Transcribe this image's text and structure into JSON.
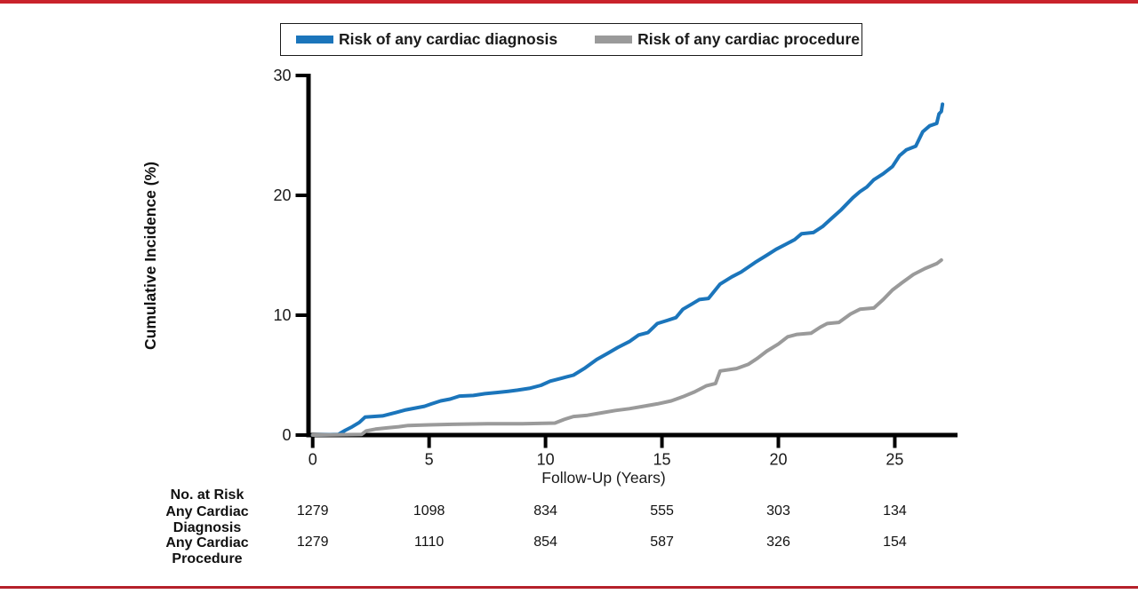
{
  "frame": {
    "top_bar_color": "#c9232b",
    "bottom_bar_color": "#b5202a"
  },
  "legend": {
    "items": [
      {
        "key": "diagnosis",
        "label": "Risk of any cardiac diagnosis",
        "color": "#1b75bb"
      },
      {
        "key": "procedure",
        "label": "Risk of any cardiac procedure",
        "color": "#9a9a9a"
      }
    ]
  },
  "chart_data": {
    "type": "line",
    "title": "",
    "xlabel": "Follow-Up (Years)",
    "ylabel": "Cumulative Incidence (%)",
    "xlim": [
      0,
      27.7
    ],
    "ylim": [
      0,
      30
    ],
    "x_ticks": [
      0,
      5,
      10,
      15,
      20,
      25
    ],
    "y_ticks": [
      0,
      10,
      20,
      30
    ],
    "grid": false,
    "legend_position": "top",
    "axis_color": "#000000",
    "series": [
      {
        "name": "Risk of any cardiac diagnosis",
        "key": "diagnosis",
        "color": "#1b75bb",
        "points": [
          [
            0,
            0
          ],
          [
            1.1,
            0.05
          ],
          [
            1.4,
            0.4
          ],
          [
            1.7,
            0.7
          ],
          [
            2.0,
            1.05
          ],
          [
            2.25,
            1.5
          ],
          [
            3.0,
            1.6
          ],
          [
            3.3,
            1.75
          ],
          [
            3.6,
            1.9
          ],
          [
            4.0,
            2.1
          ],
          [
            4.4,
            2.25
          ],
          [
            4.8,
            2.4
          ],
          [
            5.1,
            2.6
          ],
          [
            5.5,
            2.85
          ],
          [
            5.9,
            3.0
          ],
          [
            6.3,
            3.25
          ],
          [
            6.9,
            3.3
          ],
          [
            7.4,
            3.45
          ],
          [
            7.9,
            3.55
          ],
          [
            8.4,
            3.65
          ],
          [
            8.8,
            3.75
          ],
          [
            9.3,
            3.9
          ],
          [
            9.8,
            4.15
          ],
          [
            10.2,
            4.5
          ],
          [
            10.7,
            4.75
          ],
          [
            11.2,
            5.0
          ],
          [
            11.7,
            5.6
          ],
          [
            12.2,
            6.3
          ],
          [
            12.7,
            6.85
          ],
          [
            13.1,
            7.3
          ],
          [
            13.6,
            7.8
          ],
          [
            14.0,
            8.35
          ],
          [
            14.4,
            8.55
          ],
          [
            14.8,
            9.3
          ],
          [
            15.2,
            9.55
          ],
          [
            15.6,
            9.8
          ],
          [
            15.9,
            10.5
          ],
          [
            16.3,
            10.95
          ],
          [
            16.6,
            11.3
          ],
          [
            17.0,
            11.4
          ],
          [
            17.5,
            12.6
          ],
          [
            18.0,
            13.2
          ],
          [
            18.4,
            13.6
          ],
          [
            19.0,
            14.4
          ],
          [
            19.5,
            15.0
          ],
          [
            19.9,
            15.5
          ],
          [
            20.3,
            15.9
          ],
          [
            20.7,
            16.3
          ],
          [
            21.0,
            16.8
          ],
          [
            21.5,
            16.9
          ],
          [
            21.9,
            17.4
          ],
          [
            22.3,
            18.1
          ],
          [
            22.7,
            18.8
          ],
          [
            23.2,
            19.8
          ],
          [
            23.5,
            20.3
          ],
          [
            23.8,
            20.7
          ],
          [
            24.1,
            21.3
          ],
          [
            24.5,
            21.8
          ],
          [
            24.9,
            22.4
          ],
          [
            25.2,
            23.3
          ],
          [
            25.5,
            23.8
          ],
          [
            25.9,
            24.1
          ],
          [
            26.2,
            25.3
          ],
          [
            26.5,
            25.8
          ],
          [
            26.8,
            26.0
          ],
          [
            26.9,
            26.8
          ],
          [
            27.0,
            27.0
          ],
          [
            27.05,
            27.6
          ]
        ]
      },
      {
        "name": "Risk of any cardiac procedure",
        "key": "procedure",
        "color": "#9a9a9a",
        "points": [
          [
            0,
            0
          ],
          [
            2.1,
            0.05
          ],
          [
            2.3,
            0.35
          ],
          [
            2.7,
            0.5
          ],
          [
            3.2,
            0.6
          ],
          [
            3.7,
            0.7
          ],
          [
            4.1,
            0.8
          ],
          [
            5.0,
            0.85
          ],
          [
            6.0,
            0.9
          ],
          [
            7.5,
            0.95
          ],
          [
            9.0,
            0.95
          ],
          [
            10.4,
            1.0
          ],
          [
            10.8,
            1.3
          ],
          [
            11.2,
            1.55
          ],
          [
            11.8,
            1.65
          ],
          [
            12.4,
            1.85
          ],
          [
            13.0,
            2.05
          ],
          [
            13.6,
            2.2
          ],
          [
            14.2,
            2.4
          ],
          [
            14.8,
            2.6
          ],
          [
            15.4,
            2.85
          ],
          [
            15.9,
            3.2
          ],
          [
            16.4,
            3.6
          ],
          [
            16.9,
            4.1
          ],
          [
            17.3,
            4.3
          ],
          [
            17.5,
            5.35
          ],
          [
            18.2,
            5.55
          ],
          [
            18.7,
            5.9
          ],
          [
            19.1,
            6.4
          ],
          [
            19.5,
            7.0
          ],
          [
            20.0,
            7.6
          ],
          [
            20.4,
            8.2
          ],
          [
            20.8,
            8.4
          ],
          [
            21.4,
            8.5
          ],
          [
            21.8,
            9.0
          ],
          [
            22.1,
            9.3
          ],
          [
            22.6,
            9.4
          ],
          [
            23.1,
            10.1
          ],
          [
            23.5,
            10.5
          ],
          [
            24.1,
            10.6
          ],
          [
            24.5,
            11.3
          ],
          [
            24.9,
            12.1
          ],
          [
            25.3,
            12.7
          ],
          [
            25.8,
            13.4
          ],
          [
            26.3,
            13.9
          ],
          [
            26.8,
            14.3
          ],
          [
            27.0,
            14.6
          ]
        ]
      }
    ]
  },
  "risk_table": {
    "header": "No. at Risk",
    "time_points": [
      0,
      5,
      10,
      15,
      20,
      25
    ],
    "rows": [
      {
        "label_line1": "Any Cardiac",
        "label_line2": "Diagnosis",
        "values": [
          "1279",
          "1098",
          "834",
          "555",
          "303",
          "134"
        ]
      },
      {
        "label_line1": "Any Cardiac",
        "label_line2": "Procedure",
        "values": [
          "1279",
          "1110",
          "854",
          "587",
          "326",
          "154"
        ]
      }
    ]
  }
}
